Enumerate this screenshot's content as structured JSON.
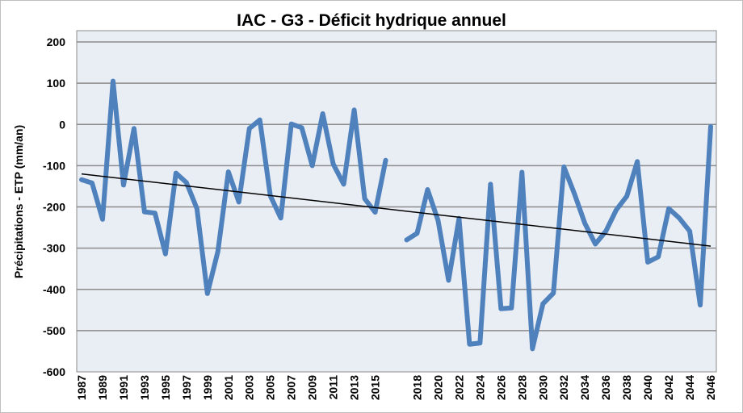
{
  "chart_data": {
    "type": "line",
    "title": "IAC - G3 - Déficit hydrique annuel",
    "xlabel": "",
    "ylabel": "Précipitations - ETP (mm/an)",
    "ylim": [
      -600,
      200
    ],
    "yticks": [
      200,
      100,
      0,
      -100,
      -200,
      -300,
      -400,
      -500,
      -600
    ],
    "grid": true,
    "legend": "none",
    "categories": [
      "1987",
      "1988",
      "1989",
      "1990",
      "1991",
      "1992",
      "1993",
      "1994",
      "1995",
      "1996",
      "1997",
      "1998",
      "1999",
      "2000",
      "2001",
      "2002",
      "2003",
      "2004",
      "2005",
      "2006",
      "2007",
      "2008",
      "2009",
      "2010",
      "2011",
      "2012",
      "2013",
      "2014",
      "2015",
      "2016",
      "",
      "2017",
      "2018",
      "2019",
      "2020",
      "2021",
      "2022",
      "2023",
      "2024",
      "2025",
      "2026",
      "2027",
      "2028",
      "2029",
      "2030",
      "2031",
      "2032",
      "2033",
      "2034",
      "2035",
      "2036",
      "2037",
      "2038",
      "2039",
      "2040",
      "2041",
      "2042",
      "2043",
      "2044",
      "2045",
      "2046"
    ],
    "xtick_labels": [
      "1987",
      "1989",
      "1991",
      "1993",
      "1995",
      "1997",
      "1999",
      "2001",
      "2003",
      "2005",
      "2007",
      "2009",
      "2011",
      "2013",
      "2015",
      "",
      "2018",
      "2020",
      "2022",
      "2024",
      "2026",
      "2028",
      "2030",
      "2032",
      "2034",
      "2036",
      "2038",
      "2040",
      "2042",
      "2044",
      "2046"
    ],
    "series": [
      {
        "name": "Déficit hydrique",
        "color": "#4f81bd",
        "values": [
          -134,
          -142,
          -230,
          105,
          -147,
          -10,
          -212,
          -215,
          -314,
          -118,
          -141,
          -204,
          -410,
          -308,
          -115,
          -188,
          -10,
          11,
          -173,
          -227,
          1,
          -8,
          -100,
          26,
          -96,
          -145,
          35,
          -180,
          -213,
          -87,
          null,
          -280,
          -264,
          -158,
          -233,
          -378,
          -228,
          -533,
          -530,
          -145,
          -447,
          -445,
          -116,
          -544,
          -435,
          -409,
          -103,
          -168,
          -240,
          -290,
          -259,
          -207,
          -174,
          -90,
          -334,
          -321,
          -204,
          -227,
          -259,
          -438,
          -5
        ]
      },
      {
        "name": "Tendance linéaire",
        "color": "#000000",
        "type": "trendline",
        "start": -120,
        "end": -295
      }
    ]
  }
}
